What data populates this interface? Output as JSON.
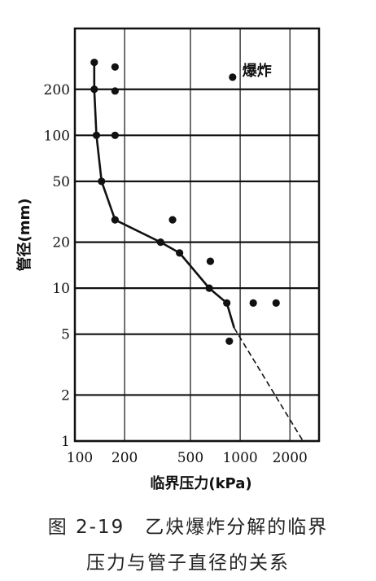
{
  "chart_data": {
    "type": "scatter",
    "title": "",
    "xlabel": "临界压力(kPa)",
    "ylabel": "管径(mm)",
    "x_scale": "log",
    "y_scale": "log",
    "xlim": [
      100,
      3000
    ],
    "ylim": [
      1,
      500
    ],
    "x_ticks": [
      100,
      200,
      500,
      1000,
      2000
    ],
    "x_tick_labels": [
      "100",
      "200",
      "500",
      "1000",
      "2000"
    ],
    "y_ticks": [
      1,
      2,
      5,
      10,
      20,
      50,
      100,
      200
    ],
    "y_tick_labels": [
      "1",
      "2",
      "5",
      "10",
      "20",
      "50",
      "100",
      "200"
    ],
    "grid": true,
    "series": [
      {
        "name": "爆炸",
        "kind": "points",
        "points": [
          [
            131,
            300
          ],
          [
            175,
            280
          ],
          [
            131,
            200
          ],
          [
            175,
            195
          ],
          [
            135,
            100
          ],
          [
            175,
            100
          ],
          [
            145,
            50
          ],
          [
            175,
            28
          ],
          [
            390,
            28
          ],
          [
            330,
            20
          ],
          [
            430,
            17
          ],
          [
            660,
            15
          ],
          [
            650,
            10
          ],
          [
            830,
            8
          ],
          [
            1200,
            8
          ],
          [
            1650,
            8
          ],
          [
            860,
            4.5
          ],
          [
            900,
            240
          ]
        ]
      },
      {
        "name": "",
        "kind": "line",
        "points": [
          [
            131,
            300
          ],
          [
            131,
            200
          ],
          [
            135,
            100
          ],
          [
            145,
            50
          ],
          [
            175,
            28
          ],
          [
            330,
            20
          ],
          [
            430,
            17
          ],
          [
            650,
            10
          ],
          [
            830,
            8
          ],
          [
            920,
            5.5
          ]
        ]
      },
      {
        "name": "",
        "kind": "dashed-line",
        "points": [
          [
            920,
            5.5
          ],
          [
            2400,
            1
          ]
        ]
      }
    ],
    "annotations": [
      {
        "text": "爆炸",
        "at": [
          900,
          240
        ]
      }
    ]
  },
  "caption": {
    "line1": "图 2-19　乙炔爆炸分解的临界",
    "line2": "压力与管子直径的关系"
  }
}
